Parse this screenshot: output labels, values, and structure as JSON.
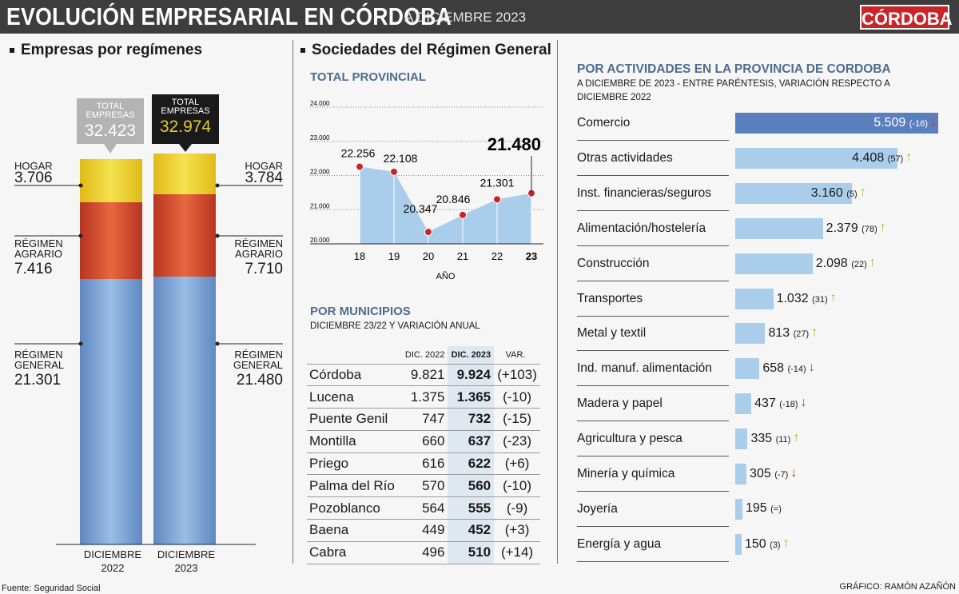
{
  "header": {
    "title": "EVOLUCIÓN EMPRESARIAL EN CÓRDOBA",
    "subtitle": "A DICIEMBRE 2023",
    "logo": "CÓRDOBA"
  },
  "colors": {
    "hogar": "#e8c832",
    "agrario": "#c8452b",
    "general": "#6f97cc",
    "bar": "#a9cdea",
    "bar_highlight": "#5b7fbc",
    "up": "#9ac323",
    "down": "#d22a2a",
    "accent": "#4f6c8c"
  },
  "left": {
    "section_title": "Empresas por regímenes",
    "columns": [
      {
        "total_label": "TOTAL EMPRESAS",
        "total": "32.423",
        "period": "DICIEMBRE",
        "year": "2022",
        "hogar_label": "HOGAR",
        "hogar": "3.706",
        "agrario_label": "RÉGIMEN AGRARIO",
        "agrario": "7.416",
        "general_label": "RÉGIMEN GENERAL",
        "general": "21.301"
      },
      {
        "total_label": "TOTAL EMPRESAS",
        "total": "32.974",
        "period": "DICIEMBRE",
        "year": "2023",
        "hogar_label": "HOGAR",
        "hogar": "3.784",
        "agrario_label": "RÉGIMEN AGRARIO",
        "agrario": "7.710",
        "general_label": "RÉGIMEN GENERAL",
        "general": "21.480"
      }
    ]
  },
  "middle": {
    "section_title": "Sociedades del Régimen General",
    "total_title": "TOTAL PROVINCIAL",
    "municipios_title": "POR MUNICIPIOS",
    "municipios_subtitle": "DICIEMBRE 23/22 Y VARIACIÓN ANUAL",
    "table": {
      "headers": [
        "",
        "DIC. 2022",
        "DIC. 2023",
        "VAR."
      ],
      "rows": [
        [
          "Córdoba",
          "9.821",
          "9.924",
          "(+103)"
        ],
        [
          "Lucena",
          "1.375",
          "1.365",
          "(-10)"
        ],
        [
          "Puente Genil",
          "747",
          "732",
          "(-15)"
        ],
        [
          "Montilla",
          "660",
          "637",
          "(-23)"
        ],
        [
          "Priego",
          "616",
          "622",
          "(+6)"
        ],
        [
          "Palma del Río",
          "570",
          "560",
          "(-10)"
        ],
        [
          "Pozoblanco",
          "564",
          "555",
          "(-9)"
        ],
        [
          "Baena",
          "449",
          "452",
          "(+3)"
        ],
        [
          "Cabra",
          "496",
          "510",
          "(+14)"
        ]
      ]
    }
  },
  "right": {
    "title": "POR ACTIVIDADES EN LA PROVINCIA DE CORDOBA",
    "subtitle_1": "A DICIEMBRE DE 2023 - ENTRE PARÉNTESIS, VARIACIÓN RESPECTO A",
    "subtitle_2": "DICIEMBRE 2022"
  },
  "chart_data": [
    {
      "type": "area",
      "title": "TOTAL PROVINCIAL",
      "xlabel": "AÑO",
      "x": [
        "18",
        "19",
        "20",
        "21",
        "22",
        "23"
      ],
      "values": [
        22256,
        22108,
        20347,
        20846,
        21301,
        21480
      ],
      "labels": [
        "22.256",
        "22.108",
        "20.347",
        "20.846",
        "21.301",
        "21.480"
      ],
      "yticks": [
        "20.000",
        "21.000",
        "22.000",
        "23.000",
        "24.000"
      ],
      "ylim": [
        20000,
        24000
      ],
      "grid": true
    },
    {
      "type": "bar",
      "orientation": "horizontal",
      "categories": [
        "Comercio",
        "Otras actividades",
        "Inst. financieras/seguros",
        "Alimentación/hostelería",
        "Construcción",
        "Transportes",
        "Metal y textil",
        "Ind. manuf. alimentación",
        "Madera y papel",
        "Agricultura y pesca",
        "Minería y química",
        "Joyería",
        "Energía y agua"
      ],
      "values": [
        5509,
        4408,
        3160,
        2379,
        2098,
        1032,
        813,
        658,
        437,
        335,
        305,
        195,
        150
      ],
      "value_labels": [
        "5.509",
        "4.408",
        "3.160",
        "2.379",
        "2.098",
        "1.032",
        "813",
        "658",
        "437",
        "335",
        "305",
        "195",
        "150"
      ],
      "changes": [
        "(-16)",
        "(57)",
        "(5)",
        "(78)",
        "(22)",
        "(31)",
        "(27)",
        "(-14)",
        "(-18)",
        "(11)",
        "(-7)",
        "(=)",
        "(3)"
      ],
      "trend": [
        "down",
        "up",
        "up",
        "up",
        "up",
        "up",
        "up",
        "down",
        "down",
        "up",
        "down",
        "none",
        "up"
      ]
    }
  ],
  "footer": {
    "source": "Fuente: Seguridad Social",
    "credit": "GRÁFICO: RAMÓN AZAÑÓN"
  }
}
